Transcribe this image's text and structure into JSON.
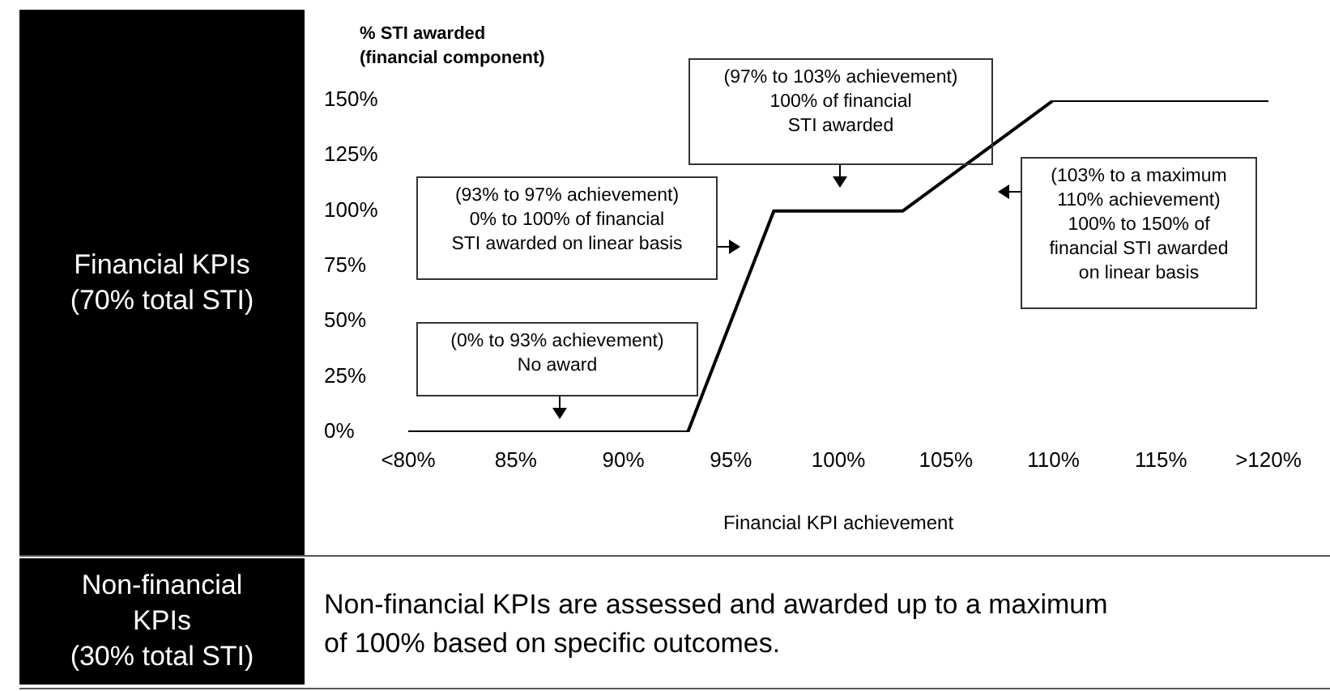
{
  "chart_data": {
    "type": "line",
    "xlabel": "Financial KPI achievement",
    "ylabel": "% STI awarded\n(financial component)",
    "x": [
      80,
      93,
      97,
      103,
      110,
      120
    ],
    "series": [
      {
        "color": "#000000",
        "values": [
          0,
          0,
          100,
          100,
          150,
          150
        ]
      }
    ],
    "xlim": [
      80,
      120
    ],
    "xticks": [
      {
        "value": 80,
        "label": "<80%"
      },
      {
        "value": 85,
        "label": "85%"
      },
      {
        "value": 90,
        "label": "90%"
      },
      {
        "value": 95,
        "label": "95%"
      },
      {
        "value": 100,
        "label": "100%"
      },
      {
        "value": 105,
        "label": "105%"
      },
      {
        "value": 110,
        "label": "110%"
      },
      {
        "value": 115,
        "label": "115%"
      },
      {
        "value": 120,
        "label": ">120%"
      }
    ],
    "ylim": [
      0,
      150
    ],
    "yticks": [
      {
        "value": 0,
        "label": "0%"
      },
      {
        "value": 25,
        "label": "25%"
      },
      {
        "value": 50,
        "label": "50%"
      },
      {
        "value": 75,
        "label": "75%"
      },
      {
        "value": 100,
        "label": "100%"
      },
      {
        "value": 125,
        "label": "125%"
      },
      {
        "value": 150,
        "label": "150%"
      }
    ],
    "grid": false,
    "legend": false,
    "marker": "none",
    "line_style": "solid",
    "annotations": [
      "Financial KPIs\n(70% total STI)",
      "Non-financial\nKPIs\n(30% total STI)",
      "Non-financial KPIs are assessed and awarded up to a maximum\nof 100% based on specific outcomes.",
      "(0% to 93% achievement)\nNo award",
      "(93% to 97% achievement)\n0% to 100% of financial\nSTI awarded on linear basis",
      "(97% to 103% achievement)\n100% of financial\nSTI awarded",
      "(103% to a maximum\n110% achievement)\n100% to 150% of\nfinancial STI awarded\non linear basis"
    ]
  }
}
